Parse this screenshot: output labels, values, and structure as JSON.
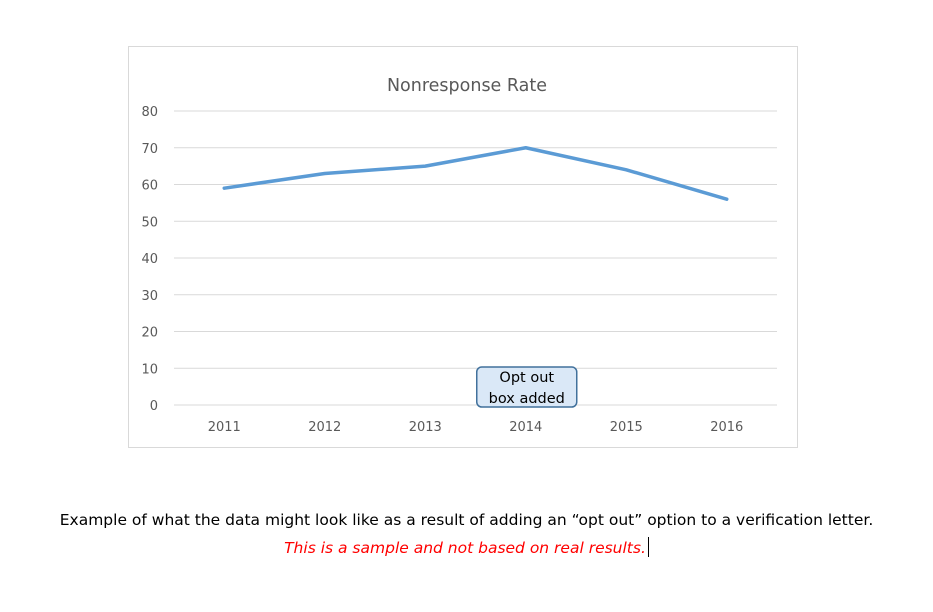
{
  "chart_data": {
    "type": "line",
    "title": "Nonresponse Rate",
    "categories": [
      "2011",
      "2012",
      "2013",
      "2014",
      "2015",
      "2016"
    ],
    "values": [
      59,
      63,
      65,
      70,
      64,
      56
    ],
    "ylim": [
      0,
      80
    ],
    "yticks": [
      0,
      10,
      20,
      30,
      40,
      50,
      60,
      70,
      80
    ],
    "grid": true,
    "line_color": "#5b9bd5",
    "annotation": {
      "text_lines": [
        "Opt out",
        "box added"
      ],
      "category": "2014",
      "fill": "#dae8f7",
      "border": "#41719c"
    }
  },
  "caption": {
    "main": "Example of what the data might look like as a result of adding an “opt out” option to a verification letter.",
    "note": "This is a sample and not based on real results.",
    "note_color": "#ff0000"
  }
}
